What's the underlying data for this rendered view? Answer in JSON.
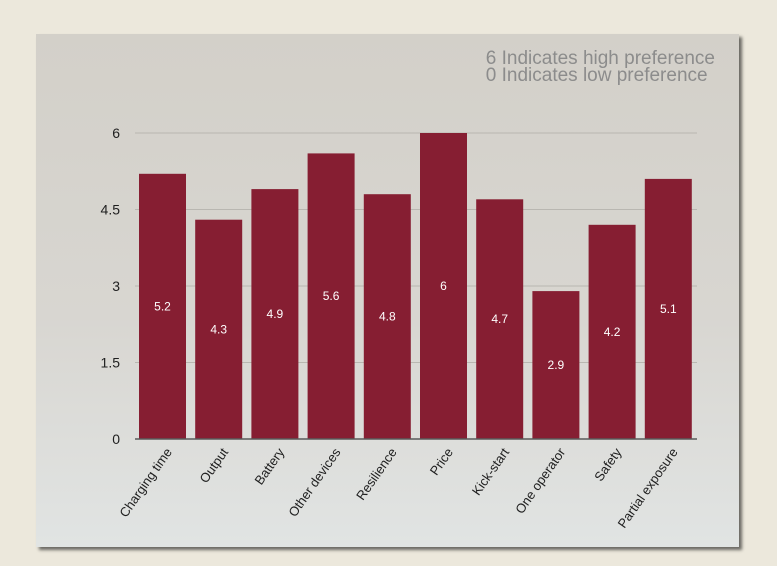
{
  "legend": {
    "line1": "6 Indicates high preference",
    "line2": "0 Indicates low preference"
  },
  "colors": {
    "bar": "#861e32",
    "axis": "#5a5a5a",
    "grid": "#b9b7b1"
  },
  "chart_data": {
    "type": "bar",
    "categories": [
      "Charging time",
      "Output",
      "Battery",
      "Other devices",
      "Resilience",
      "Price",
      "Kick-start",
      "One operator",
      "Safety",
      "Partial exposure"
    ],
    "values": [
      5.2,
      4.3,
      4.9,
      5.6,
      4.8,
      6,
      4.7,
      2.9,
      4.2,
      5.1
    ],
    "value_labels": [
      "5.2",
      "4.3",
      "4.9",
      "5.6",
      "4.8",
      "6",
      "4.7",
      "2.9",
      "4.2",
      "5.1"
    ],
    "yticks": [
      0,
      1.5,
      3,
      4.5,
      6
    ],
    "ytick_labels": [
      "0",
      "1.5",
      "3",
      "4.5",
      "6"
    ],
    "ylim": [
      0,
      6
    ],
    "grid": true
  }
}
